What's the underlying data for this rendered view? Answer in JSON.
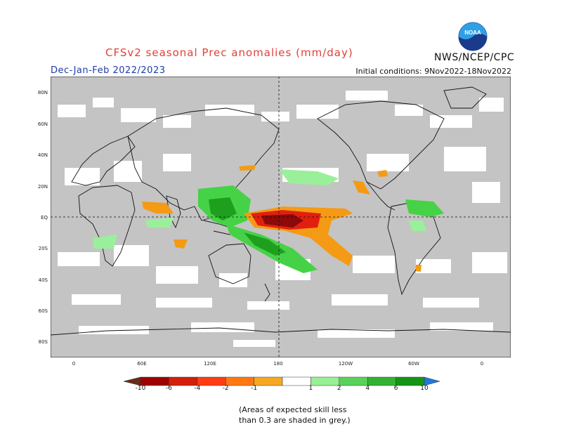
{
  "header": {
    "title": "CFSv2 seasonal Prec anomalies (mm/day)",
    "season": "Dec-Jan-Feb 2022/2023",
    "initial_conditions": "Initial conditions: 9Nov2022-18Nov2022",
    "agency": "NWS/NCEP/CPC",
    "logo_text": "NOAA"
  },
  "map": {
    "projection": "cylindrical equidistant",
    "center_longitude": "180",
    "lat_ticks": [
      "80N",
      "60N",
      "40N",
      "20N",
      "EQ",
      "20S",
      "40S",
      "60S",
      "80S"
    ],
    "lon_ticks": [
      "0",
      "60E",
      "120E",
      "180",
      "120W",
      "60W",
      "0"
    ],
    "colors": {
      "masked_grey": "#c0c0c0",
      "land_outline": "#111111",
      "dry_strong": "#8b0a0a",
      "dry_mid": "#e0200f",
      "dry_weak": "#f59a14",
      "wet_weak": "#9af09a",
      "wet_mid": "#46d246",
      "wet_strong": "#1ea01e"
    },
    "features": [
      "strong dry anomaly central equatorial Pacific",
      "wet anomaly maritime continent / western Pacific",
      "wet anomaly SPCZ region",
      "wet anomaly northern South America"
    ]
  },
  "colorbar": {
    "labels": [
      "-10",
      "-6",
      "-4",
      "-2",
      "-1",
      "1",
      "2",
      "4",
      "6",
      "10"
    ],
    "colors": [
      "#6b2a1a",
      "#a00000",
      "#d21e0a",
      "#ff3c14",
      "#ff7814",
      "#f7a823",
      "#ffffff",
      "#96f096",
      "#5ad25a",
      "#32b432",
      "#149614",
      "#1e78dc"
    ]
  },
  "footnote": {
    "line1": "(Areas of expected skill less",
    "line2": "than 0.3 are shaded in grey.)"
  }
}
